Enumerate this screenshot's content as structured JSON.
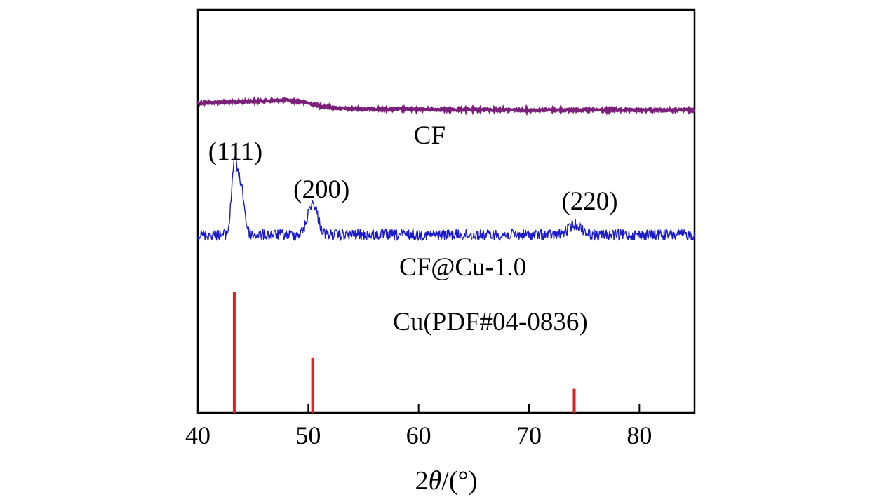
{
  "chart_data": {
    "type": "line",
    "xlabel_prefix": "2",
    "xlabel_symbol": "θ",
    "xlabel_suffix": "/(°)",
    "ylabel": "",
    "xlim": [
      40,
      85
    ],
    "xticks": [
      40,
      50,
      60,
      70,
      80
    ],
    "xtick_labels": [
      "40",
      "50",
      "60",
      "70",
      "80"
    ],
    "y_axis_ticks": "none",
    "grid": false,
    "legend": "none",
    "series": [
      {
        "name": "CF",
        "color": "#7a1f7a",
        "description_points": [
          [
            40,
            0.02
          ],
          [
            44,
            0.03
          ],
          [
            48,
            0.04
          ],
          [
            49.5,
            0.03
          ],
          [
            51,
            0.0
          ],
          [
            53,
            -0.02
          ],
          [
            60,
            -0.025
          ],
          [
            70,
            -0.03
          ],
          [
            85,
            -0.03
          ]
        ]
      },
      {
        "name": "CF@Cu-1.0",
        "color": "#1a1acc",
        "peaks": [
          {
            "x": 43.3,
            "height": 1.0,
            "width": 0.5
          },
          {
            "x": 43.9,
            "height": 0.7,
            "width": 0.6
          },
          {
            "x": 50.4,
            "height": 0.45,
            "width": 0.9
          },
          {
            "x": 74.2,
            "height": 0.15,
            "width": 1.2
          }
        ]
      },
      {
        "name": "Cu(PDF#04-0836)",
        "color": "#e02020",
        "type": "stick",
        "x": [
          43.3,
          50.4,
          74.1
        ],
        "values": [
          100,
          46,
          20
        ]
      }
    ],
    "annotations": [
      {
        "text": "CF",
        "x": 61,
        "series": "CF"
      },
      {
        "text": "(111)",
        "x": 43.4,
        "series": "CF@Cu-1.0"
      },
      {
        "text": "(200)",
        "x": 51.2,
        "series": "CF@Cu-1.0"
      },
      {
        "text": "(220)",
        "x": 75.5,
        "series": "CF@Cu-1.0"
      },
      {
        "text": "CF@Cu-1.0",
        "x": 64,
        "series": "CF@Cu-1.0"
      },
      {
        "text": "Cu(PDF#04-0836)",
        "x": 66.5,
        "series": "Cu(PDF#04-0836)"
      }
    ]
  }
}
